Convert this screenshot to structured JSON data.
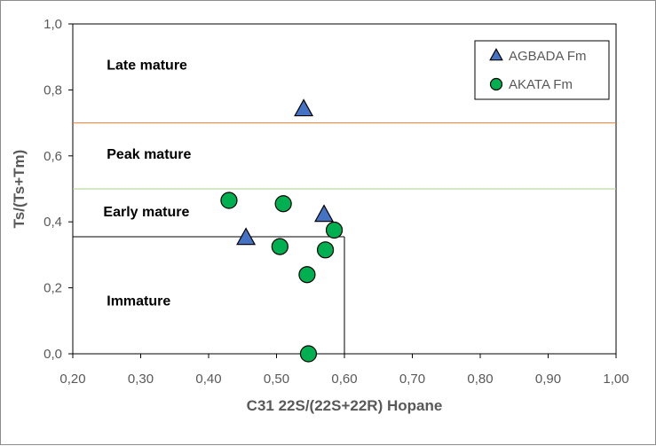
{
  "chart_data": {
    "type": "scatter",
    "xlabel": "C31 22S/(22S+22R) Hopane",
    "ylabel": "Ts/(Ts+Tm)",
    "xlim": [
      0.2,
      1.0
    ],
    "ylim": [
      0.0,
      1.0
    ],
    "x_ticks": [
      "0,20",
      "0,30",
      "0,40",
      "0,50",
      "0,60",
      "0,70",
      "0,80",
      "0,90",
      "1,00"
    ],
    "y_ticks": [
      "0,0",
      "0,2",
      "0,4",
      "0,6",
      "0,8",
      "1,0"
    ],
    "grid": false,
    "legend_position": "top-right",
    "series": [
      {
        "name": "AGBADA Fm",
        "marker": "triangle",
        "color": "#4472c4",
        "points": [
          {
            "x": 0.54,
            "y": 0.74
          },
          {
            "x": 0.57,
            "y": 0.42
          },
          {
            "x": 0.455,
            "y": 0.35
          }
        ]
      },
      {
        "name": "AKATA Fm",
        "marker": "circle",
        "color": "#00b050",
        "points": [
          {
            "x": 0.43,
            "y": 0.465
          },
          {
            "x": 0.51,
            "y": 0.455
          },
          {
            "x": 0.585,
            "y": 0.375
          },
          {
            "x": 0.505,
            "y": 0.325
          },
          {
            "x": 0.572,
            "y": 0.315
          },
          {
            "x": 0.545,
            "y": 0.24
          },
          {
            "x": 0.547,
            "y": 0.0
          }
        ]
      }
    ],
    "reference_lines": [
      {
        "axis": "y",
        "value": 0.7,
        "color": "#ed7d31"
      },
      {
        "axis": "y",
        "value": 0.5,
        "color": "#a9d18e"
      }
    ],
    "immature_box": {
      "x_max": 0.6,
      "y_max": 0.355
    },
    "zone_labels": [
      {
        "text": "Late mature",
        "x": 0.25,
        "y": 0.875
      },
      {
        "text": "Peak mature",
        "x": 0.25,
        "y": 0.605
      },
      {
        "text": "Early mature",
        "x": 0.245,
        "y": 0.43
      },
      {
        "text": "Immature",
        "x": 0.25,
        "y": 0.16
      }
    ]
  }
}
